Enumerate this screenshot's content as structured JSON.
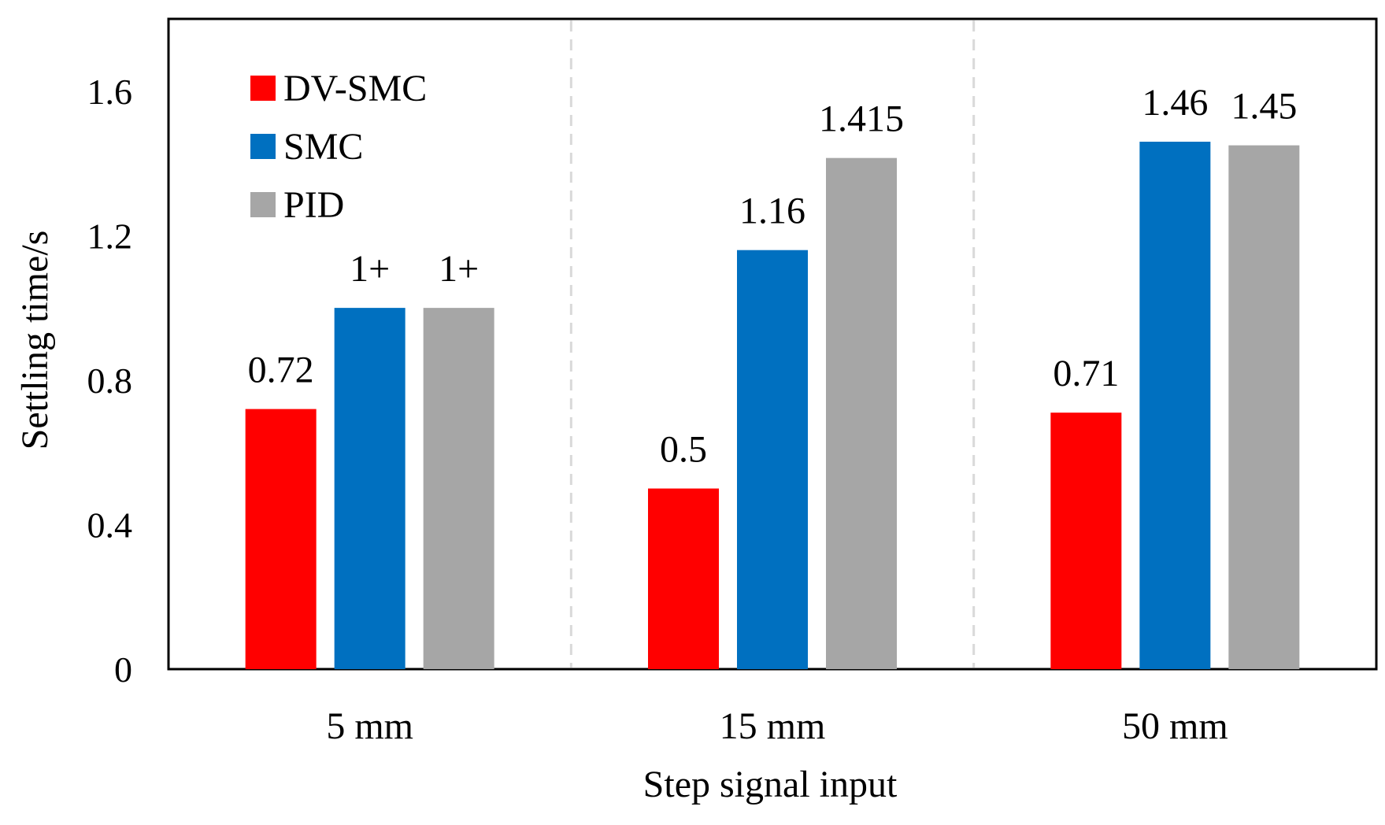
{
  "chart_data": {
    "type": "bar",
    "title": "",
    "xlabel": "Step signal input",
    "ylabel": "Settling time/s",
    "categories": [
      "5 mm",
      "15 mm",
      "50 mm"
    ],
    "ylim": [
      0,
      1.8
    ],
    "yticks": [
      0,
      0.4,
      0.8,
      1.2,
      1.6
    ],
    "ytick_labels": [
      "0",
      "0.4",
      "0.8",
      "1.2",
      "1.6"
    ],
    "legend_position": "top-left",
    "grid": false,
    "series": [
      {
        "name": "DV-SMC",
        "color": "#ff0000",
        "values": [
          0.72,
          0.5,
          0.71
        ],
        "labels": [
          "0.72",
          "0.5",
          "0.71"
        ]
      },
      {
        "name": "SMC",
        "color": "#0070c0",
        "values": [
          1.0,
          1.16,
          1.46
        ],
        "labels": [
          "1+",
          "1.16",
          "1.46"
        ]
      },
      {
        "name": "PID",
        "color": "#a6a6a6",
        "values": [
          1.0,
          1.415,
          1.45
        ],
        "labels": [
          "1+",
          "1.415",
          "1.45"
        ]
      }
    ]
  }
}
